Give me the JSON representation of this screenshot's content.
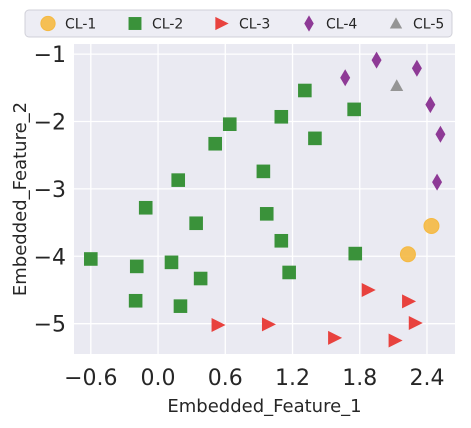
{
  "chart_data": {
    "type": "scatter",
    "title": "",
    "xlabel": "Embedded_Feature_1",
    "ylabel": "Embedded_Feature_2",
    "xlim": [
      -0.75,
      2.65
    ],
    "ylim": [
      -5.45,
      -0.85
    ],
    "xticks": [
      -0.6,
      0.0,
      0.6,
      1.2,
      1.8,
      2.4
    ],
    "xtick_labels": [
      "−0.6",
      "0.0",
      "0.6",
      "1.2",
      "1.8",
      "2.4"
    ],
    "yticks": [
      -1,
      -2,
      -3,
      -4,
      -5
    ],
    "ytick_labels": [
      "−1",
      "−2",
      "−3",
      "−4",
      "−5"
    ],
    "grid": true,
    "legend_position": "top",
    "series": [
      {
        "name": "CL-1",
        "marker": "circle",
        "color": "#f5b942",
        "points": [
          [
            2.44,
            -3.55
          ],
          [
            2.23,
            -3.97
          ]
        ]
      },
      {
        "name": "CL-2",
        "marker": "square",
        "color": "#3a923a",
        "points": [
          [
            1.31,
            -1.54
          ],
          [
            1.75,
            -1.82
          ],
          [
            1.1,
            -1.93
          ],
          [
            0.64,
            -2.04
          ],
          [
            1.4,
            -2.25
          ],
          [
            0.51,
            -2.33
          ],
          [
            0.94,
            -2.74
          ],
          [
            0.18,
            -2.87
          ],
          [
            -0.11,
            -3.28
          ],
          [
            0.97,
            -3.37
          ],
          [
            0.34,
            -3.51
          ],
          [
            1.1,
            -3.77
          ],
          [
            1.76,
            -3.96
          ],
          [
            -0.6,
            -4.04
          ],
          [
            0.12,
            -4.09
          ],
          [
            -0.19,
            -4.15
          ],
          [
            1.17,
            -4.24
          ],
          [
            0.38,
            -4.33
          ],
          [
            -0.2,
            -4.66
          ],
          [
            0.2,
            -4.74
          ]
        ]
      },
      {
        "name": "CL-3",
        "marker": "triangle-right",
        "color": "#e8423e",
        "points": [
          [
            1.88,
            -4.5
          ],
          [
            2.24,
            -4.67
          ],
          [
            0.54,
            -5.02
          ],
          [
            0.99,
            -5.01
          ],
          [
            2.3,
            -4.99
          ],
          [
            1.58,
            -5.21
          ],
          [
            2.12,
            -5.25
          ]
        ]
      },
      {
        "name": "CL-4",
        "marker": "thin-diamond",
        "color": "#8e3a96",
        "points": [
          [
            1.95,
            -1.09
          ],
          [
            2.31,
            -1.21
          ],
          [
            1.67,
            -1.35
          ],
          [
            2.43,
            -1.75
          ],
          [
            2.52,
            -2.19
          ],
          [
            2.49,
            -2.9
          ]
        ]
      },
      {
        "name": "CL-5",
        "marker": "triangle-up",
        "color": "#959595",
        "points": [
          [
            2.13,
            -1.47
          ]
        ]
      }
    ]
  }
}
